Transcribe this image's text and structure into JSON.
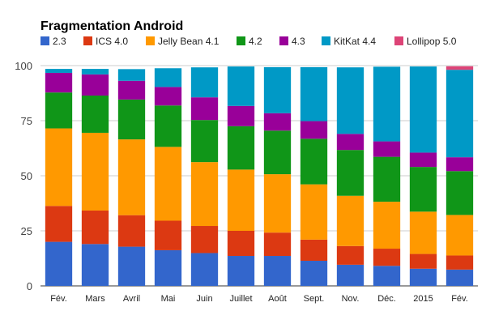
{
  "chart_data": {
    "type": "bar",
    "stacked": true,
    "title": "Fragmentation Android",
    "xlabel": "",
    "ylabel": "",
    "ylim": [
      0,
      100
    ],
    "yticks": [
      "0",
      "25",
      "50",
      "75",
      "100"
    ],
    "grid": true,
    "legend_position": "top",
    "categories": [
      "Fév.",
      "Mars",
      "Avril",
      "Mai",
      "Juin",
      "Juillet",
      "Août",
      "Sept.",
      "Nov.",
      "Déc.",
      "2015",
      "Fév."
    ],
    "series": [
      {
        "name": "2.3",
        "color": "#3366cc",
        "values": [
          20.0,
          19.0,
          17.8,
          16.2,
          14.9,
          13.6,
          13.6,
          11.4,
          9.6,
          9.1,
          7.8,
          7.4
        ]
      },
      {
        "name": "ICS 4.0",
        "color": "#dc3912",
        "values": [
          16.3,
          15.2,
          14.3,
          13.4,
          12.3,
          11.4,
          10.6,
          9.6,
          8.5,
          7.8,
          6.7,
          6.4
        ]
      },
      {
        "name": "Jelly Bean 4.1",
        "color": "#ff9900",
        "values": [
          35.2,
          35.3,
          34.4,
          33.5,
          29.0,
          27.8,
          26.5,
          25.1,
          22.8,
          21.3,
          19.2,
          18.4
        ]
      },
      {
        "name": "4.2",
        "color": "#109618",
        "values": [
          16.3,
          16.9,
          18.1,
          18.8,
          19.1,
          19.7,
          19.8,
          20.7,
          20.8,
          20.4,
          20.3,
          19.9
        ]
      },
      {
        "name": "4.3",
        "color": "#990099",
        "values": [
          8.9,
          9.6,
          8.5,
          8.4,
          10.3,
          9.2,
          7.9,
          8.0,
          7.3,
          7.0,
          6.5,
          6.3
        ]
      },
      {
        "name": "KitKat 4.4",
        "color": "#0099c6",
        "values": [
          1.8,
          2.5,
          5.3,
          8.5,
          13.6,
          17.9,
          20.9,
          24.5,
          30.2,
          33.9,
          39.1,
          39.7
        ]
      },
      {
        "name": "Lollipop 5.0",
        "color": "#dd4477",
        "values": [
          0,
          0,
          0,
          0,
          0,
          0,
          0,
          0,
          0,
          0,
          0,
          1.6
        ]
      }
    ]
  }
}
